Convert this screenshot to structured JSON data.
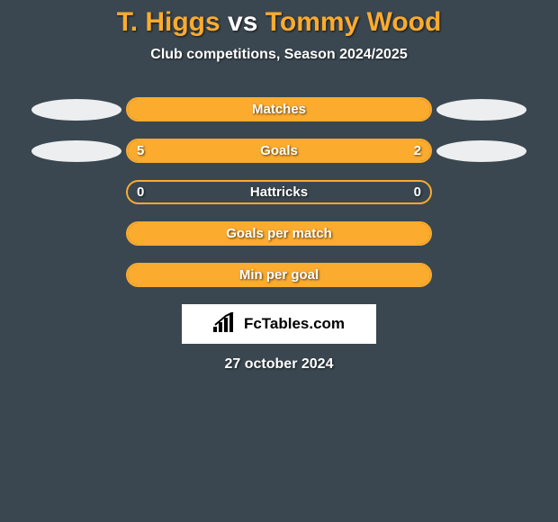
{
  "title": {
    "player1": "T. Higgs",
    "vs": "vs",
    "player2": "Tommy Wood"
  },
  "subtitle": "Club competitions, Season 2024/2025",
  "accent_color": "#fbab2e",
  "background_color": "#3a4750",
  "ellipse_color": "#eceef0",
  "stats": [
    {
      "label": "Matches",
      "left_val": "",
      "right_val": "",
      "left_fill_pct": 100,
      "right_fill_pct": 0,
      "show_left_ellipse": true,
      "show_right_ellipse": true
    },
    {
      "label": "Goals",
      "left_val": "5",
      "right_val": "2",
      "left_fill_pct": 68,
      "right_fill_pct": 32,
      "show_left_ellipse": true,
      "show_right_ellipse": true
    },
    {
      "label": "Hattricks",
      "left_val": "0",
      "right_val": "0",
      "left_fill_pct": 0,
      "right_fill_pct": 0,
      "show_left_ellipse": false,
      "show_right_ellipse": false
    },
    {
      "label": "Goals per match",
      "left_val": "",
      "right_val": "",
      "left_fill_pct": 100,
      "right_fill_pct": 0,
      "show_left_ellipse": false,
      "show_right_ellipse": false
    },
    {
      "label": "Min per goal",
      "left_val": "",
      "right_val": "",
      "left_fill_pct": 100,
      "right_fill_pct": 0,
      "show_left_ellipse": false,
      "show_right_ellipse": false
    }
  ],
  "logo_text": "FcTables.com",
  "date": "27 october 2024"
}
